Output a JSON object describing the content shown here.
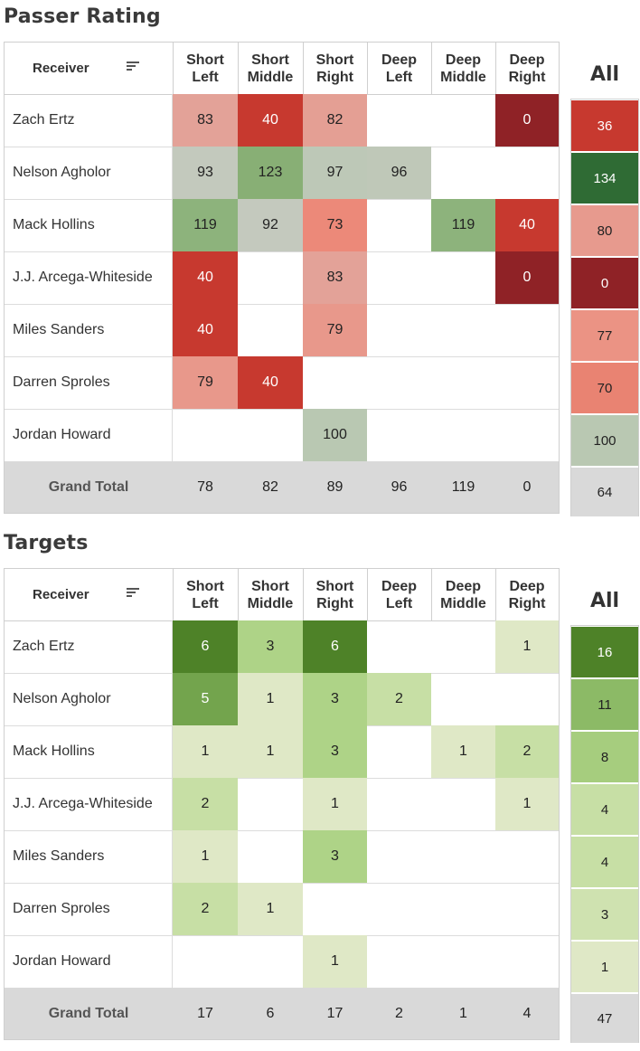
{
  "chart_data": [
    {
      "type": "table",
      "title": "Passer Rating",
      "row_header": "Receiver",
      "columns": [
        "Short\nLeft",
        "Short\nMiddle",
        "Short\nRight",
        "Deep\nLeft",
        "Deep\nMiddle",
        "Deep\nRight"
      ],
      "all_label": "All",
      "total_label": "Grand Total",
      "rows": [
        {
          "name": "Zach Ertz",
          "values": [
            83,
            40,
            82,
            null,
            null,
            0
          ],
          "all": 36
        },
        {
          "name": "Nelson Agholor",
          "values": [
            93,
            123,
            97,
            96,
            null,
            null
          ],
          "all": 134
        },
        {
          "name": "Mack Hollins",
          "values": [
            119,
            92,
            73,
            null,
            119,
            40
          ],
          "all": 80
        },
        {
          "name": "J.J. Arcega-Whiteside",
          "values": [
            40,
            null,
            83,
            null,
            null,
            0
          ],
          "all": 0
        },
        {
          "name": "Miles Sanders",
          "values": [
            40,
            null,
            79,
            null,
            null,
            null
          ],
          "all": 77
        },
        {
          "name": "Darren Sproles",
          "values": [
            79,
            40,
            null,
            null,
            null,
            null
          ],
          "all": 70
        },
        {
          "name": "Jordan Howard",
          "values": [
            null,
            null,
            100,
            null,
            null,
            null
          ],
          "all": 100
        }
      ],
      "totals": [
        78,
        82,
        89,
        96,
        119,
        0
      ],
      "total_all": 64
    },
    {
      "type": "table",
      "title": "Targets",
      "row_header": "Receiver",
      "columns": [
        "Short\nLeft",
        "Short\nMiddle",
        "Short\nRight",
        "Deep\nLeft",
        "Deep\nMiddle",
        "Deep\nRight"
      ],
      "all_label": "All",
      "total_label": "Grand Total",
      "rows": [
        {
          "name": "Zach Ertz",
          "values": [
            6,
            3,
            6,
            null,
            null,
            1
          ],
          "all": 16
        },
        {
          "name": "Nelson Agholor",
          "values": [
            5,
            1,
            3,
            2,
            null,
            null
          ],
          "all": 11
        },
        {
          "name": "Mack Hollins",
          "values": [
            1,
            1,
            3,
            null,
            1,
            2
          ],
          "all": 8
        },
        {
          "name": "J.J. Arcega-Whiteside",
          "values": [
            2,
            null,
            1,
            null,
            null,
            1
          ],
          "all": 4
        },
        {
          "name": "Miles Sanders",
          "values": [
            1,
            null,
            3,
            null,
            null,
            null
          ],
          "all": 4
        },
        {
          "name": "Darren Sproles",
          "values": [
            2,
            1,
            null,
            null,
            null,
            null
          ],
          "all": 3
        },
        {
          "name": "Jordan Howard",
          "values": [
            null,
            null,
            1,
            null,
            null,
            null
          ],
          "all": 1
        }
      ],
      "totals": [
        17,
        6,
        17,
        2,
        1,
        4
      ],
      "total_all": 47
    }
  ]
}
